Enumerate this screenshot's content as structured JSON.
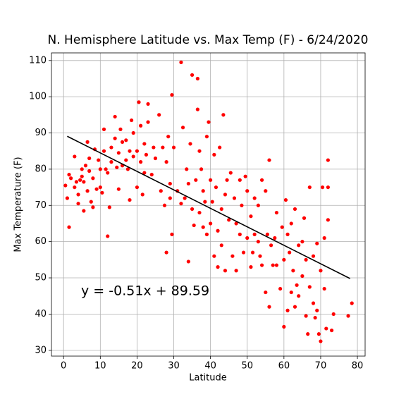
{
  "chart_data": {
    "type": "scatter",
    "title": "N. Hemisphere Latitude vs. Max Temp (F) - 6/24/2020",
    "xlabel": "Latitude",
    "ylabel": "Max Temperature (F)",
    "annotation": "y = -0.51x + 89.59",
    "color": "#ff0000",
    "grid": true,
    "xlim": [
      -3.3,
      82.1
    ],
    "ylim": [
      28.4,
      112.1
    ],
    "xticks": [
      0,
      10,
      20,
      30,
      40,
      50,
      60,
      70,
      80
    ],
    "yticks": [
      30,
      40,
      50,
      60,
      70,
      80,
      90,
      100,
      110
    ],
    "x": [
      0.5,
      1,
      1.5,
      1.5,
      2,
      3,
      3,
      3.5,
      4,
      4,
      4.5,
      5,
      5,
      5.5,
      5.5,
      6,
      6.5,
      6.5,
      7,
      7,
      7.5,
      8,
      8,
      8.5,
      9,
      9.5,
      10,
      10,
      10.5,
      11,
      11,
      11.5,
      12,
      12,
      12.5,
      13,
      13,
      14,
      14,
      14.5,
      15,
      15,
      15.5,
      16,
      16,
      17,
      17,
      17.5,
      18,
      18,
      18.5,
      19,
      19,
      20,
      20,
      20.5,
      21,
      21,
      21.5,
      22,
      22,
      22.5,
      23,
      23,
      24,
      24.5,
      25,
      26,
      26.5,
      27,
      27.5,
      28,
      28,
      28.5,
      29,
      29,
      29.5,
      29.5,
      30,
      31,
      32,
      32,
      32.5,
      33,
      33.5,
      34,
      34,
      34.5,
      35,
      35,
      35.5,
      36,
      36.5,
      36.5,
      37,
      37,
      37.5,
      38,
      38,
      38.5,
      39,
      39,
      39.5,
      40,
      40,
      40.5,
      41,
      41,
      41.5,
      42,
      42,
      42.5,
      43,
      43,
      43.5,
      44,
      44,
      44.5,
      45,
      45.5,
      46,
      46.5,
      47,
      47,
      48,
      48,
      48.5,
      49,
      49.5,
      50,
      50,
      51,
      51,
      51.5,
      52,
      52,
      53,
      53,
      53.5,
      54,
      54,
      55,
      55,
      55.5,
      56,
      56,
      56.5,
      57,
      57.5,
      58,
      58,
      59,
      59.5,
      60,
      60,
      60.5,
      61,
      61,
      61.5,
      62,
      62,
      62.5,
      63,
      63,
      63.5,
      64,
      64,
      65,
      65,
      65.5,
      66,
      66,
      66.5,
      67,
      67,
      68,
      68,
      68.5,
      69,
      69,
      69.5,
      70,
      70,
      70.5,
      71,
      71,
      71.5,
      72,
      72,
      72,
      73,
      73.5,
      77.5,
      78.5
    ],
    "values": [
      75.5,
      72,
      64,
      78.5,
      77.5,
      83.5,
      75,
      76.5,
      73,
      70.5,
      77,
      78,
      80,
      76.5,
      68.5,
      81,
      87.5,
      74,
      79.5,
      83,
      71,
      77.5,
      69.5,
      85.5,
      74.5,
      82.5,
      75,
      80,
      73.5,
      85,
      91,
      80,
      79,
      61.5,
      69.5,
      82,
      86,
      94.5,
      88.5,
      80.5,
      74.5,
      84.5,
      91,
      87.5,
      81,
      88,
      82.5,
      80,
      85,
      71.5,
      93.5,
      83.5,
      90,
      85,
      75,
      98.5,
      82,
      92,
      73,
      87,
      79,
      84,
      93,
      98,
      78.5,
      86,
      83,
      95,
      74,
      86,
      70,
      57,
      82,
      89,
      72,
      76,
      62,
      100.5,
      86,
      74,
      70.5,
      109.5,
      91.5,
      72,
      80,
      54.5,
      76,
      87,
      106,
      69,
      64.5,
      77,
      96.5,
      105,
      85,
      68,
      80,
      74,
      64,
      71,
      89,
      62,
      93,
      77,
      65,
      71,
      56,
      84,
      75,
      63,
      53,
      86,
      59,
      69,
      95,
      52,
      73,
      77,
      66,
      79,
      56,
      72,
      65,
      52,
      62,
      77,
      70,
      57,
      78,
      61,
      74,
      53,
      67,
      57,
      72,
      62,
      60,
      70,
      56,
      53.5,
      77,
      74,
      46,
      62,
      82.5,
      42,
      59,
      53.5,
      61,
      68,
      53.5,
      47,
      64,
      36.5,
      55,
      71.5,
      41,
      62,
      57,
      46,
      65,
      52,
      69,
      42,
      48,
      59,
      45,
      50.5,
      60,
      66.5,
      39.5,
      55,
      34.5,
      47.5,
      75,
      56,
      43,
      39,
      59.5,
      41,
      34.5,
      32.5,
      52,
      75,
      47,
      61,
      36,
      82.5,
      75,
      66,
      35.5,
      40,
      39.5,
      43
    ],
    "fit": {
      "x": [
        1,
        78
      ],
      "values": [
        89.08,
        49.81
      ],
      "color": "#000000"
    }
  }
}
